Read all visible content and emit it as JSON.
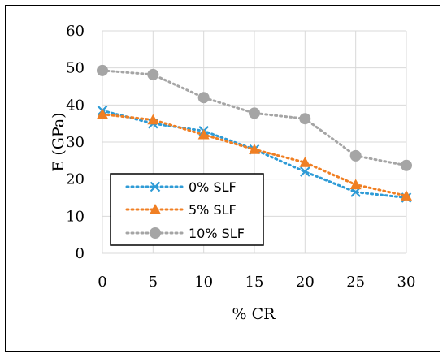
{
  "chart_data": {
    "type": "line",
    "title": "",
    "xlabel": "% CR",
    "ylabel": "E (GPa)",
    "x": [
      0,
      5,
      10,
      15,
      20,
      25,
      30
    ],
    "xlim": [
      0,
      30
    ],
    "ylim": [
      0,
      60
    ],
    "x_ticks": [
      "0",
      "5",
      "10",
      "15",
      "20",
      "25",
      "30"
    ],
    "y_ticks": [
      "0",
      "10",
      "20",
      "30",
      "40",
      "50",
      "60"
    ],
    "grid": "both",
    "legend_position": "lower-left",
    "series": [
      {
        "name": "0% SLF",
        "color": "#2e9bd6",
        "marker": "x",
        "values": [
          38.5,
          35,
          33,
          28,
          22,
          16.5,
          15
        ]
      },
      {
        "name": "5% SLF",
        "color": "#f07f23",
        "marker": "triangle",
        "values": [
          37.5,
          36,
          32,
          28,
          24.5,
          18.5,
          15.5
        ]
      },
      {
        "name": "10% SLF",
        "color": "#a5a5a5",
        "marker": "circle",
        "values": [
          49.3,
          48.2,
          42,
          37.8,
          36.3,
          26.3,
          23.7
        ]
      }
    ]
  }
}
